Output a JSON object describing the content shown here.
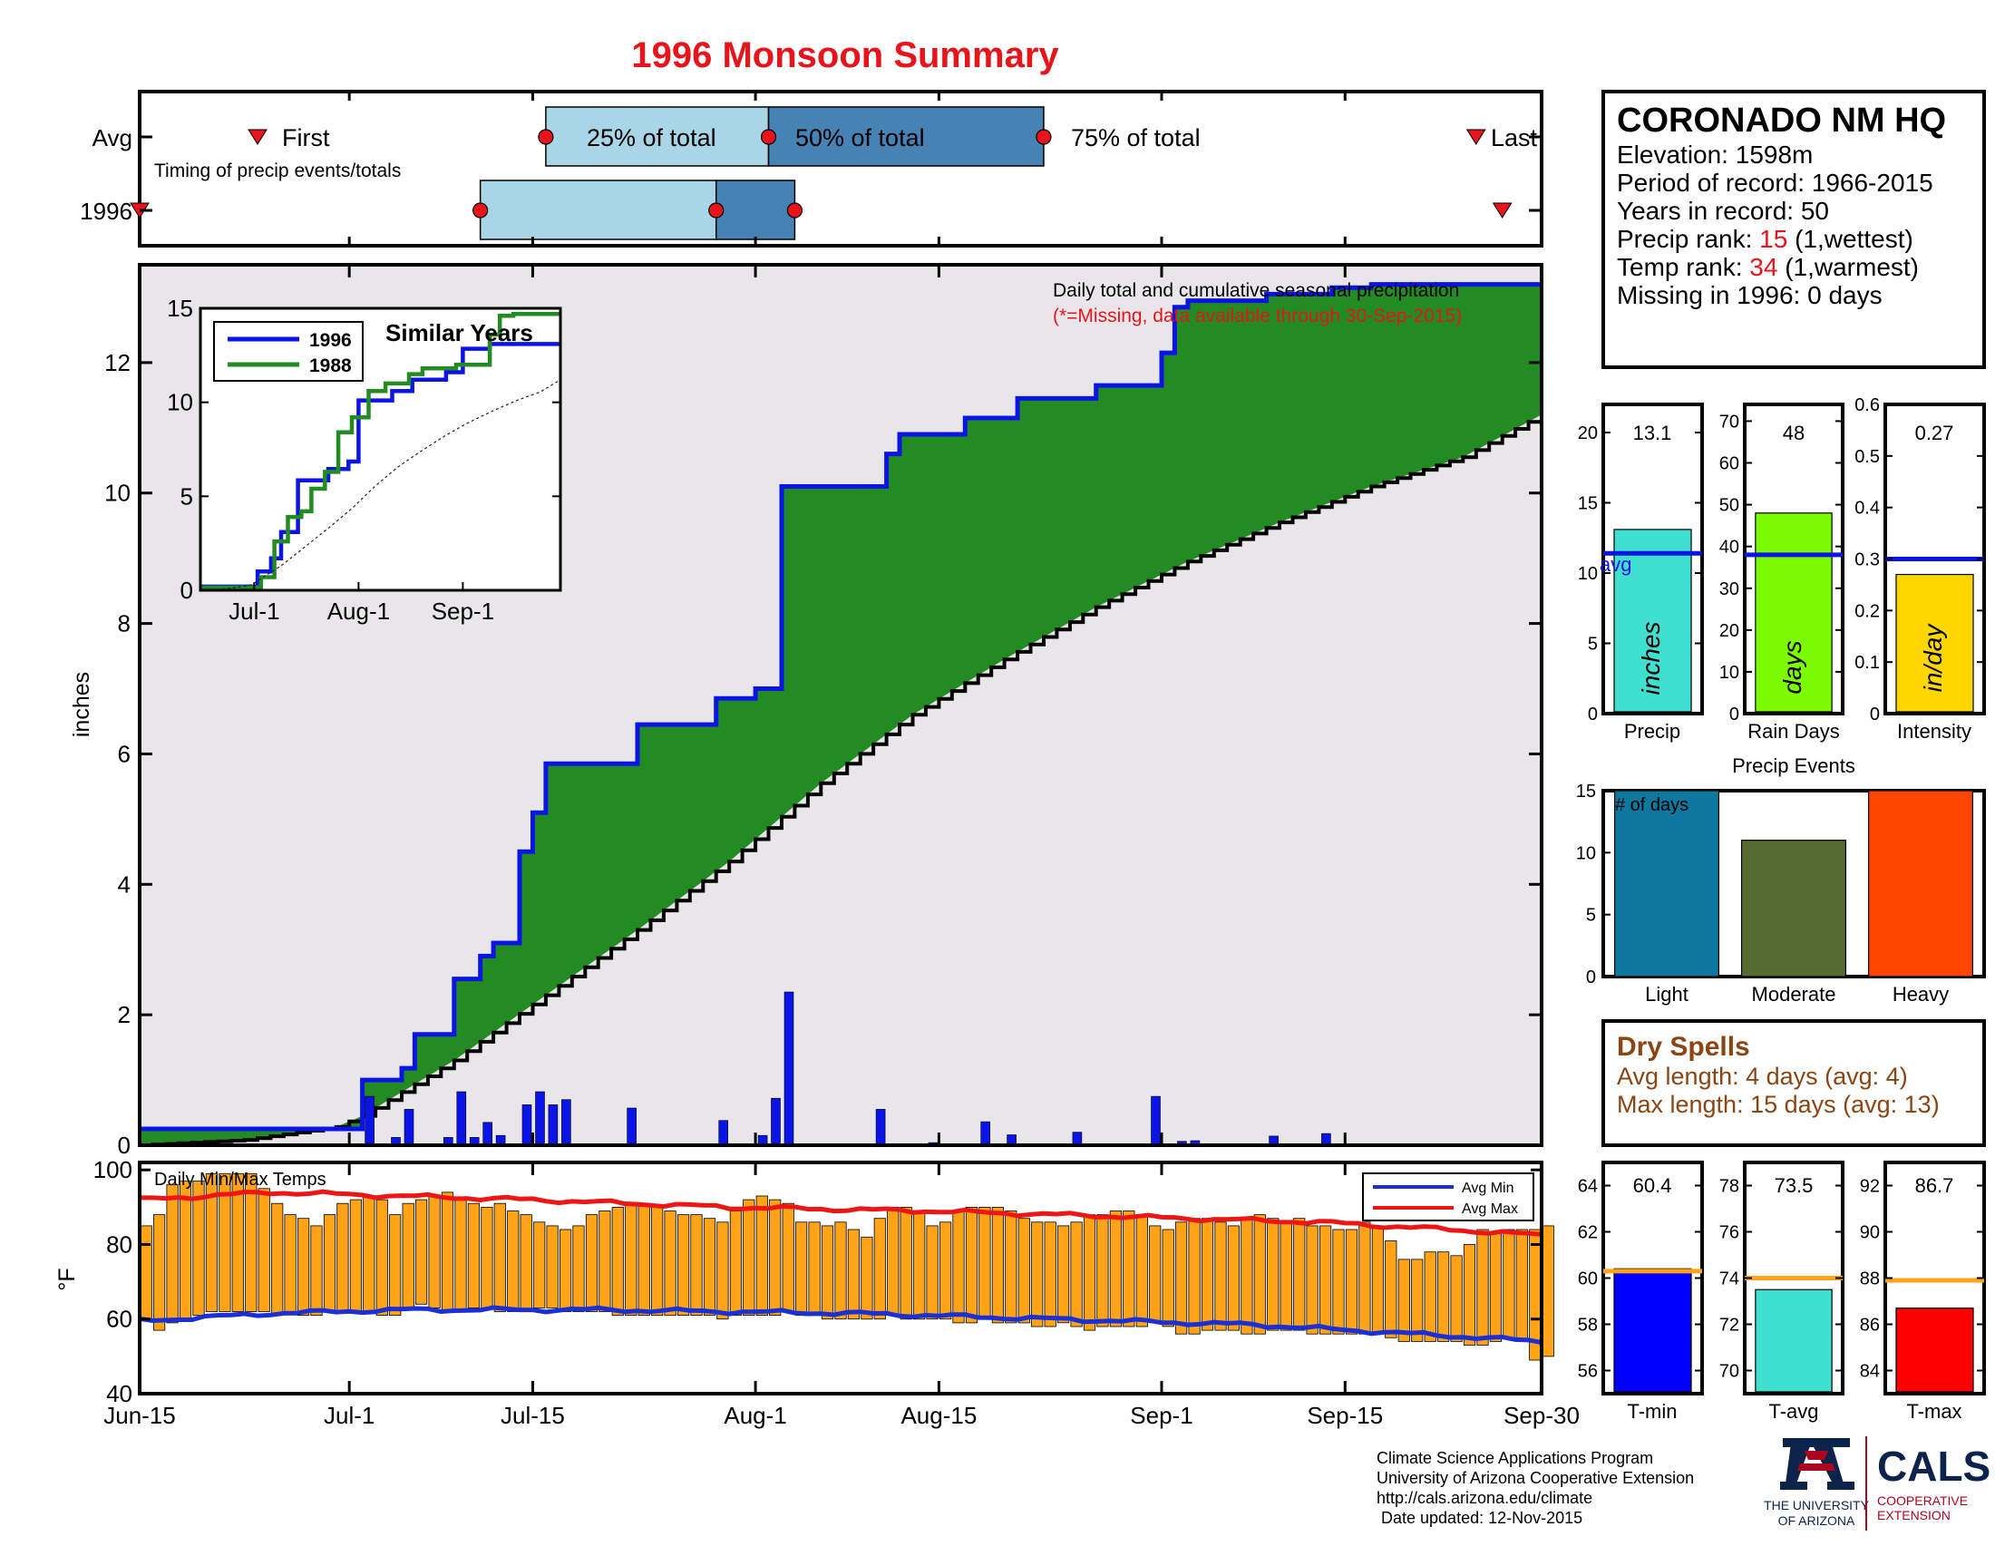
{
  "title": "1996 Monsoon Summary",
  "timing": {
    "row_labels": [
      "Avg",
      "1996"
    ],
    "subtitle": "Timing of precip events/totals",
    "first_label": "First",
    "last_label": "Last",
    "pct25_label": "25% of total",
    "pct50_label": "50% of total",
    "pct75_label": "75% of total",
    "avg": {
      "first": "Jun-24",
      "p25": "Jul-16",
      "p50": "Aug-2",
      "p75": "Aug-23",
      "last": "Sep-25"
    },
    "year": {
      "first": "Jun-15",
      "p25": "Jul-11",
      "p50": "Jul-29",
      "p75": "Aug-4",
      "last": "Sep-27"
    }
  },
  "station": {
    "name": "CORONADO NM HQ",
    "elevation": "Elevation: 1598m",
    "period": "Period of record: 1966-2015",
    "years": "Years in record: 50",
    "precip_rank_label": "Precip rank: ",
    "precip_rank_value": "15",
    "precip_rank_suffix": " (1,wettest)",
    "temp_rank_label": "Temp rank: ",
    "temp_rank_value": "34",
    "temp_rank_suffix": " (1,warmest)",
    "missing": "Missing in 1996: 0 days"
  },
  "main_chart": {
    "note": "Daily total and cumulative seasonal precipitation",
    "missing_note": "(*=Missing, data available through 30-Sep-2015)",
    "ylabel": "inches"
  },
  "inset": {
    "title": "Similar Years",
    "legend": [
      "1996",
      "1988"
    ]
  },
  "temps_chart": {
    "label": "Daily Min/Max Temps",
    "ylabel": "°F",
    "legend_min": "Avg Min",
    "legend_max": "Avg Max"
  },
  "summary_bars": {
    "precip": {
      "value": "13.1",
      "unit": "inches",
      "label": "Precip",
      "avg_label": "avg"
    },
    "rain_days": {
      "value": "48",
      "unit": "days",
      "label": "Rain Days"
    },
    "intensity": {
      "value": "0.27",
      "unit": "in/day",
      "label": "Intensity"
    }
  },
  "events": {
    "title": "Precip Events",
    "unit_note": "# of days",
    "categories": [
      "Light",
      "Moderate",
      "Heavy"
    ]
  },
  "dry_spells": {
    "title": "Dry Spells",
    "avg_length": "Avg length: 4 days (avg: 4)",
    "max_length": "Max length: 15 days (avg: 13)"
  },
  "temp_bars": {
    "tmin": {
      "value": "60.4",
      "label": "T-min"
    },
    "tavg": {
      "value": "73.5",
      "label": "T-avg"
    },
    "tmax": {
      "value": "86.7",
      "label": "T-max"
    }
  },
  "footer": {
    "lines": [
      "Climate Science Applications Program",
      "University of Arizona Cooperative Extension",
      "http://cals.arizona.edu/climate",
      " Date updated: 12-Nov-2015"
    ],
    "ua_logo_text": [
      "THE UNIVERSITY",
      "OF ARIZONA"
    ],
    "cals_logo_text": [
      "CALS",
      "COOPERATIVE",
      "EXTENSION"
    ]
  },
  "colors": {
    "title": "#e8141c",
    "cumulative_line": "#0a14e6",
    "above_avg_fill": "#228b22",
    "avg_fill": "#e8e6e9",
    "daily_bar": "#0a14e6",
    "temp_bar": "#ffa319",
    "avg_min_line": "#1a2fd6",
    "avg_max_line": "#ee1515",
    "box_light": "#a8d6e6",
    "box_dark": "#4682b4",
    "marker": "#e8141c",
    "precip_bar": "#40e0d0",
    "days_bar": "#7cfc00",
    "intensity_bar": "#ffd700",
    "light_bar": "#0e779e",
    "moderate_bar": "#556b2f",
    "heavy_bar": "#ff4500",
    "tmin_bar": "#0000ff",
    "tavg_bar": "#40e0d0",
    "tmax_bar": "#ff0000",
    "temp_avg_line": "#ffa319",
    "dry_spells_text": "#8b4513"
  },
  "chart_data": [
    {
      "type": "area",
      "title": "Daily total and cumulative seasonal precipitation",
      "ylabel": "inches",
      "ylim": [
        0,
        13.5
      ],
      "xlim": [
        "Jun-15",
        "Sep-30"
      ],
      "x_ticks": [
        "Jun-15",
        "Jul-1",
        "Jul-15",
        "Aug-1",
        "Aug-15",
        "Sep-1",
        "Sep-15",
        "Sep-30"
      ],
      "y_ticks": [
        0,
        2,
        4,
        6,
        8,
        10,
        12
      ],
      "cumulative_1996": [
        [
          0,
          0.25
        ],
        [
          17,
          0.25
        ],
        [
          17,
          1.0
        ],
        [
          20,
          1.0
        ],
        [
          20,
          1.18
        ],
        [
          21,
          1.18
        ],
        [
          21,
          1.7
        ],
        [
          24,
          1.7
        ],
        [
          24,
          2.55
        ],
        [
          26,
          2.55
        ],
        [
          26,
          2.9
        ],
        [
          27,
          2.9
        ],
        [
          27,
          3.1
        ],
        [
          29,
          3.1
        ],
        [
          29,
          4.5
        ],
        [
          30,
          4.5
        ],
        [
          30,
          5.1
        ],
        [
          31,
          5.1
        ],
        [
          31,
          5.85
        ],
        [
          38,
          5.85
        ],
        [
          38,
          6.45
        ],
        [
          44,
          6.45
        ],
        [
          44,
          6.85
        ],
        [
          47,
          6.85
        ],
        [
          47,
          7.0
        ],
        [
          49,
          7.0
        ],
        [
          49,
          10.1
        ],
        [
          57,
          10.1
        ],
        [
          57,
          10.6
        ],
        [
          58,
          10.6
        ],
        [
          58,
          10.9
        ],
        [
          63,
          10.9
        ],
        [
          63,
          11.15
        ],
        [
          67,
          11.15
        ],
        [
          67,
          11.45
        ],
        [
          73,
          11.45
        ],
        [
          73,
          11.65
        ],
        [
          78,
          11.65
        ],
        [
          78,
          12.15
        ],
        [
          79,
          12.15
        ],
        [
          79,
          12.85
        ],
        [
          80,
          12.85
        ],
        [
          80,
          12.95
        ],
        [
          86,
          12.95
        ],
        [
          86,
          13.05
        ],
        [
          91,
          13.05
        ],
        [
          91,
          13.15
        ],
        [
          94,
          13.15
        ],
        [
          94,
          13.2
        ],
        [
          107,
          13.2
        ]
      ],
      "cumulative_avg": [
        [
          0,
          0
        ],
        [
          8,
          0.08
        ],
        [
          15,
          0.28
        ],
        [
          17,
          0.45
        ],
        [
          24,
          1.3
        ],
        [
          31,
          2.3
        ],
        [
          38,
          3.3
        ],
        [
          45,
          4.35
        ],
        [
          52,
          5.55
        ],
        [
          59,
          6.6
        ],
        [
          66,
          7.45
        ],
        [
          73,
          8.25
        ],
        [
          80,
          8.95
        ],
        [
          87,
          9.55
        ],
        [
          94,
          10.1
        ],
        [
          101,
          10.55
        ],
        [
          107,
          11.2
        ]
      ],
      "daily_precip_1996": [
        [
          17,
          0.75
        ],
        [
          19,
          0.12
        ],
        [
          20,
          0.55
        ],
        [
          23,
          0.12
        ],
        [
          24,
          0.82
        ],
        [
          25,
          0.12
        ],
        [
          26,
          0.35
        ],
        [
          27,
          0.15
        ],
        [
          29,
          0.62
        ],
        [
          30,
          0.82
        ],
        [
          31,
          0.62
        ],
        [
          32,
          0.7
        ],
        [
          37,
          0.57
        ],
        [
          44,
          0.38
        ],
        [
          47,
          0.15
        ],
        [
          48,
          0.72
        ],
        [
          49,
          2.35
        ],
        [
          56,
          0.55
        ],
        [
          60,
          0.04
        ],
        [
          64,
          0.36
        ],
        [
          66,
          0.16
        ],
        [
          71,
          0.2
        ],
        [
          77,
          0.75
        ],
        [
          79,
          0.06
        ],
        [
          80,
          0.07
        ],
        [
          86,
          0.14
        ],
        [
          90,
          0.18
        ]
      ],
      "x_unit": "days after Jun-15"
    },
    {
      "type": "line",
      "title": "Similar Years",
      "ylim": [
        0,
        15
      ],
      "y_ticks": [
        0,
        5,
        10,
        15
      ],
      "x_ticks": [
        "Jul-1",
        "Aug-1",
        "Sep-1"
      ],
      "series": [
        {
          "name": "1996",
          "points": [
            [
              0,
              0.2
            ],
            [
              17,
              0.2
            ],
            [
              17,
              1.0
            ],
            [
              21,
              1.0
            ],
            [
              21,
              1.7
            ],
            [
              24,
              1.7
            ],
            [
              24,
              3.1
            ],
            [
              29,
              3.1
            ],
            [
              29,
              5.85
            ],
            [
              38,
              5.85
            ],
            [
              38,
              6.45
            ],
            [
              44,
              6.45
            ],
            [
              44,
              6.85
            ],
            [
              47,
              6.85
            ],
            [
              47,
              10.1
            ],
            [
              57,
              10.1
            ],
            [
              57,
              10.6
            ],
            [
              63,
              10.6
            ],
            [
              63,
              11.2
            ],
            [
              73,
              11.2
            ],
            [
              73,
              11.6
            ],
            [
              78,
              11.6
            ],
            [
              78,
              12.85
            ],
            [
              86,
              12.85
            ],
            [
              86,
              13.1
            ],
            [
              107,
              13.1
            ]
          ]
        },
        {
          "name": "1988",
          "points": [
            [
              0,
              0.15
            ],
            [
              18,
              0.15
            ],
            [
              18,
              0.7
            ],
            [
              22,
              0.7
            ],
            [
              22,
              2.6
            ],
            [
              26,
              2.6
            ],
            [
              26,
              3.9
            ],
            [
              30,
              3.9
            ],
            [
              30,
              4.2
            ],
            [
              33,
              4.2
            ],
            [
              33,
              5.4
            ],
            [
              37,
              5.4
            ],
            [
              37,
              6.3
            ],
            [
              41,
              6.3
            ],
            [
              41,
              8.4
            ],
            [
              45,
              8.4
            ],
            [
              45,
              9.2
            ],
            [
              50,
              9.2
            ],
            [
              50,
              10.6
            ],
            [
              55,
              10.6
            ],
            [
              55,
              11.0
            ],
            [
              62,
              11.0
            ],
            [
              62,
              11.5
            ],
            [
              66,
              11.5
            ],
            [
              66,
              11.8
            ],
            [
              76,
              11.8
            ],
            [
              76,
              12.0
            ],
            [
              86,
              12.0
            ],
            [
              86,
              13.6
            ],
            [
              89,
              13.6
            ],
            [
              89,
              14.6
            ],
            [
              93,
              14.6
            ],
            [
              93,
              14.7
            ],
            [
              107,
              14.7
            ]
          ]
        },
        {
          "name": "avg",
          "points": [
            [
              0,
              0
            ],
            [
              8,
              0.08
            ],
            [
              15,
              0.28
            ],
            [
              24,
              1.3
            ],
            [
              31,
              2.3
            ],
            [
              38,
              3.3
            ],
            [
              45,
              4.35
            ],
            [
              52,
              5.55
            ],
            [
              59,
              6.6
            ],
            [
              66,
              7.45
            ],
            [
              73,
              8.25
            ],
            [
              80,
              8.95
            ],
            [
              87,
              9.55
            ],
            [
              94,
              10.1
            ],
            [
              101,
              10.55
            ],
            [
              107,
              11.2
            ]
          ]
        }
      ]
    },
    {
      "type": "bar",
      "title": "Daily Min/Max Temps",
      "ylabel": "°F",
      "ylim": [
        40,
        100
      ],
      "y_ticks": [
        40,
        60,
        80,
        100
      ],
      "avg_max_knots": [
        [
          0,
          92
        ],
        [
          10,
          94
        ],
        [
          20,
          93
        ],
        [
          30,
          92
        ],
        [
          45,
          90
        ],
        [
          60,
          89
        ],
        [
          75,
          87.5
        ],
        [
          90,
          86
        ],
        [
          100,
          84
        ],
        [
          107,
          82.5
        ]
      ],
      "avg_min_knots": [
        [
          0,
          59.5
        ],
        [
          10,
          61.5
        ],
        [
          20,
          62.5
        ],
        [
          35,
          62.5
        ],
        [
          55,
          61.5
        ],
        [
          70,
          60
        ],
        [
          85,
          58.5
        ],
        [
          100,
          55.5
        ],
        [
          107,
          54
        ]
      ],
      "daily_max": [
        85,
        88,
        96,
        97,
        97,
        99,
        99,
        99,
        99,
        95,
        91,
        88,
        87,
        85,
        88,
        91,
        92,
        93,
        92,
        88,
        91,
        92,
        93,
        94,
        92,
        91,
        90,
        91,
        89,
        88,
        86,
        85,
        84,
        85,
        88,
        89,
        90,
        91,
        91,
        90,
        89,
        88,
        88,
        87,
        86,
        89,
        92,
        93,
        92,
        91,
        86,
        86,
        85,
        86,
        84,
        82,
        87,
        90,
        90,
        89,
        85,
        86,
        89,
        90,
        90,
        90,
        89,
        87,
        86,
        86,
        85,
        86,
        88,
        88,
        89,
        89,
        88,
        85,
        84,
        86,
        87,
        87,
        86,
        85,
        87,
        88,
        87,
        86,
        87,
        85,
        85,
        84,
        84,
        86,
        85,
        81,
        76,
        76,
        78,
        78,
        77,
        80,
        84,
        83,
        84,
        84,
        84,
        85
      ],
      "daily_min": [
        60,
        57,
        59,
        60,
        61,
        62,
        62,
        62,
        62,
        62,
        61,
        62,
        61,
        61,
        62,
        62,
        62,
        62,
        61,
        61,
        63,
        64,
        63,
        62,
        62,
        63,
        63,
        62,
        62,
        62,
        63,
        63,
        62,
        62,
        62,
        62,
        61,
        61,
        61,
        61,
        61,
        61,
        61,
        61,
        60,
        61,
        61,
        61,
        61,
        62,
        61,
        61,
        60,
        60,
        60,
        60,
        60,
        61,
        60,
        60,
        60,
        60,
        59,
        59,
        60,
        59,
        59,
        59,
        58,
        58,
        59,
        58,
        57,
        58,
        58,
        58,
        58,
        59,
        58,
        56,
        56,
        57,
        57,
        57,
        56,
        56,
        57,
        57,
        57,
        56,
        56,
        56,
        56,
        56,
        56,
        55,
        54,
        54,
        54,
        54,
        54,
        53,
        53,
        54,
        55,
        54,
        49,
        50
      ]
    },
    {
      "type": "bar",
      "title": "Seasonal totals",
      "categories": [
        "Precip",
        "Rain Days",
        "Intensity"
      ],
      "values": [
        13.1,
        48,
        0.27
      ],
      "avg": [
        11.4,
        38,
        0.3
      ],
      "ylims": [
        [
          0,
          22
        ],
        [
          0,
          74
        ],
        [
          0,
          0.6
        ]
      ]
    },
    {
      "type": "bar",
      "title": "Precip Events",
      "ylabel": "# of days",
      "categories": [
        "Light",
        "Moderate",
        "Heavy"
      ],
      "values": [
        15,
        11,
        15
      ],
      "ylim": [
        0,
        15
      ]
    },
    {
      "type": "bar",
      "title": "Seasonal temperatures",
      "categories": [
        "T-min",
        "T-avg",
        "T-max"
      ],
      "values": [
        60.4,
        73.5,
        86.7
      ],
      "avg": [
        60.3,
        74.0,
        87.9
      ],
      "ylims": [
        [
          55,
          65
        ],
        [
          69,
          79
        ],
        [
          83,
          93
        ]
      ],
      "y_ticks": [
        [
          56,
          58,
          60,
          62,
          64
        ],
        [
          70,
          72,
          74,
          76,
          78
        ],
        [
          84,
          86,
          88,
          90,
          92
        ]
      ]
    }
  ]
}
